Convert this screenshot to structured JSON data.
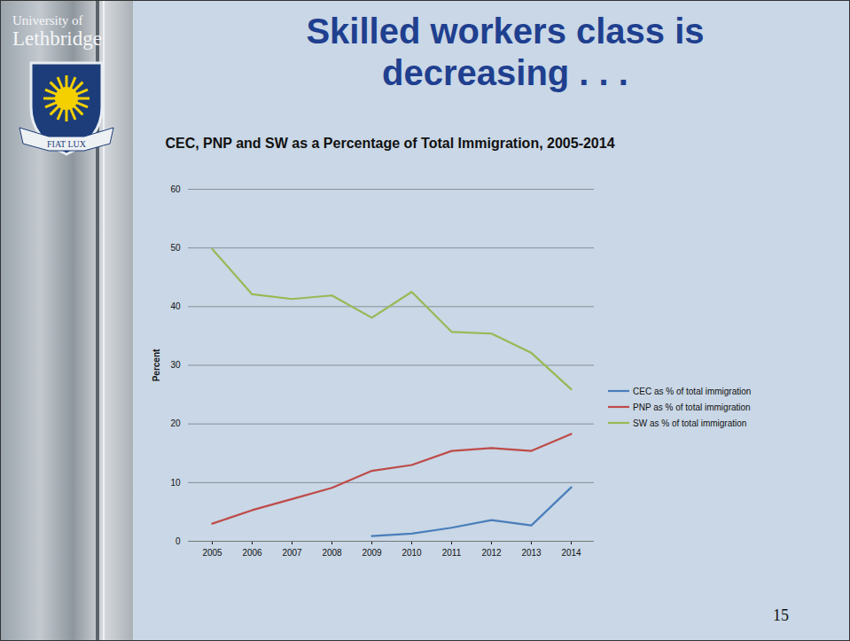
{
  "slide": {
    "title": "Skilled workers class is decreasing . . .",
    "page_number": "15",
    "logo": {
      "institution": [
        "University of",
        "Lethbridge"
      ],
      "motto": "FIAT LUX"
    }
  },
  "chart_data": {
    "type": "line",
    "title": "CEC, PNP and SW as a Percentage of Total Immigration, 2005-2014",
    "y_label": "Percent",
    "categories": [
      "2005",
      "2006",
      "2007",
      "2008",
      "2009",
      "2010",
      "2011",
      "2012",
      "2013",
      "2014"
    ],
    "series": [
      {
        "name": "CEC as % of total immigration",
        "color": "#4a7ebb",
        "values": [
          null,
          null,
          null,
          null,
          0.9,
          1.3,
          2.3,
          3.6,
          2.7,
          9.2
        ]
      },
      {
        "name": "PNP as % of total immigration",
        "color": "#be4b48",
        "values": [
          3.0,
          5.3,
          7.2,
          9.1,
          12.0,
          13.0,
          15.4,
          15.9,
          15.4,
          18.3
        ]
      },
      {
        "name": "SW as % of total immigration",
        "color": "#98b954",
        "values": [
          49.8,
          42.1,
          41.3,
          41.9,
          38.1,
          42.5,
          35.7,
          35.4,
          32.1,
          25.9
        ]
      }
    ],
    "ylim": [
      0,
      60
    ],
    "yticks": [
      0,
      10,
      20,
      30,
      40,
      50,
      60
    ],
    "grid": true,
    "legend": "right"
  }
}
